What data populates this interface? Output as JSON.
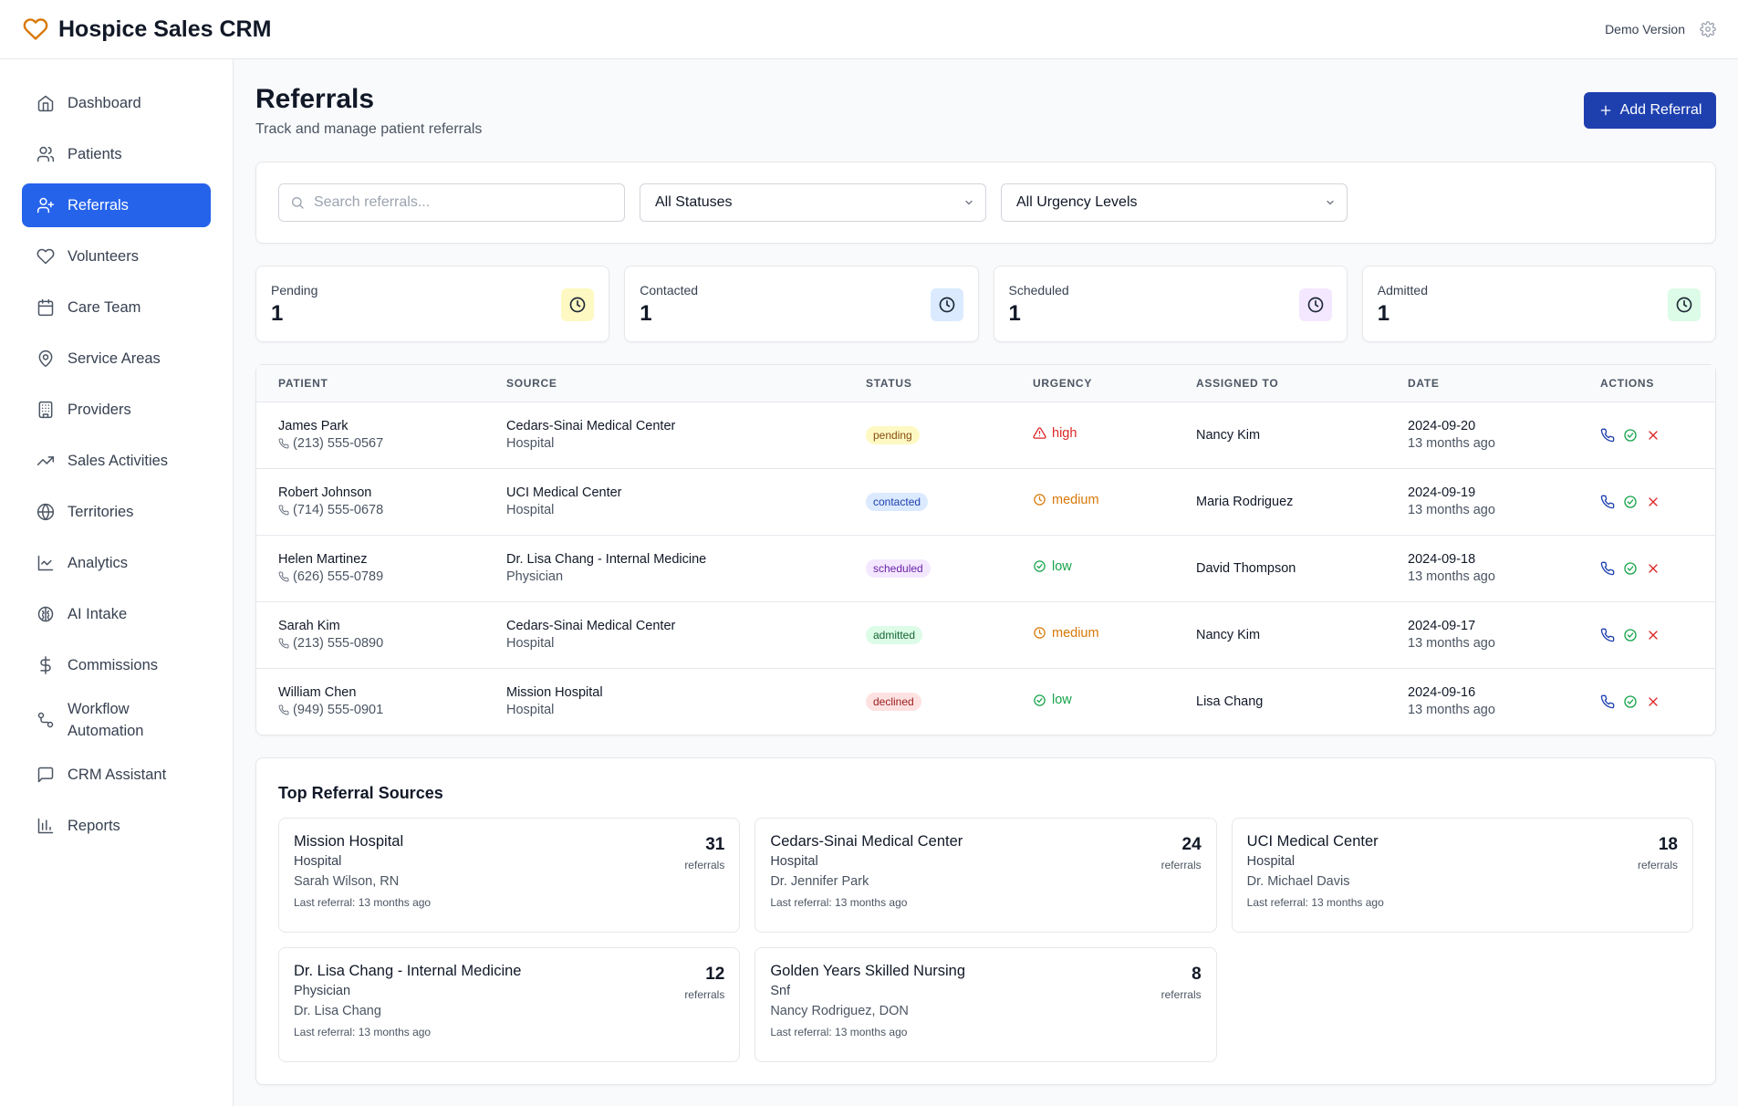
{
  "app": {
    "title": "Hospice Sales CRM",
    "demo_label": "Demo Version"
  },
  "sidebar": {
    "items": [
      {
        "label": "Dashboard",
        "icon": "home-icon"
      },
      {
        "label": "Patients",
        "icon": "users-icon"
      },
      {
        "label": "Referrals",
        "icon": "user-plus-icon",
        "active": true
      },
      {
        "label": "Volunteers",
        "icon": "heart-icon"
      },
      {
        "label": "Care Team",
        "icon": "calendar-icon"
      },
      {
        "label": "Service Areas",
        "icon": "map-pin-icon"
      },
      {
        "label": "Providers",
        "icon": "building-icon"
      },
      {
        "label": "Sales Activities",
        "icon": "trending-up-icon"
      },
      {
        "label": "Territories",
        "icon": "globe-icon"
      },
      {
        "label": "Analytics",
        "icon": "line-chart-icon"
      },
      {
        "label": "AI Intake",
        "icon": "brain-icon"
      },
      {
        "label": "Commissions",
        "icon": "dollar-icon"
      },
      {
        "label": "Workflow Automation",
        "icon": "workflow-icon"
      },
      {
        "label": "CRM Assistant",
        "icon": "message-square-icon"
      },
      {
        "label": "Reports",
        "icon": "bar-chart-icon"
      }
    ]
  },
  "page": {
    "title": "Referrals",
    "subtitle": "Track and manage patient referrals",
    "add_button": "Add Referral"
  },
  "filters": {
    "search_placeholder": "Search referrals...",
    "status_select": "All Statuses",
    "urgency_select": "All Urgency Levels"
  },
  "stats": [
    {
      "label": "Pending",
      "value": "1",
      "color": "#ca8a04",
      "bg": "#fef9c3"
    },
    {
      "label": "Contacted",
      "value": "1",
      "color": "#1e40af",
      "bg": "#dbeafe"
    },
    {
      "label": "Scheduled",
      "value": "1",
      "color": "#7e22ce",
      "bg": "#f3e8ff"
    },
    {
      "label": "Admitted",
      "value": "1",
      "color": "#15803d",
      "bg": "#dcfce7"
    }
  ],
  "table": {
    "headers": [
      "Patient",
      "Source",
      "Status",
      "Urgency",
      "Assigned To",
      "Date",
      "Actions"
    ],
    "rows": [
      {
        "name": "James Park",
        "phone": "(213) 555-0567",
        "source": "Cedars-Sinai Medical Center",
        "source_type": "Hospital",
        "status": "pending",
        "urgency": "high",
        "assigned": "Nancy Kim",
        "date": "2024-09-20",
        "ago": "13 months ago"
      },
      {
        "name": "Robert Johnson",
        "phone": "(714) 555-0678",
        "source": "UCI Medical Center",
        "source_type": "Hospital",
        "status": "contacted",
        "urgency": "medium",
        "assigned": "Maria Rodriguez",
        "date": "2024-09-19",
        "ago": "13 months ago"
      },
      {
        "name": "Helen Martinez",
        "phone": "(626) 555-0789",
        "source": "Dr. Lisa Chang - Internal Medicine",
        "source_type": "Physician",
        "status": "scheduled",
        "urgency": "low",
        "assigned": "David Thompson",
        "date": "2024-09-18",
        "ago": "13 months ago"
      },
      {
        "name": "Sarah Kim",
        "phone": "(213) 555-0890",
        "source": "Cedars-Sinai Medical Center",
        "source_type": "Hospital",
        "status": "admitted",
        "urgency": "medium",
        "assigned": "Nancy Kim",
        "date": "2024-09-17",
        "ago": "13 months ago"
      },
      {
        "name": "William Chen",
        "phone": "(949) 555-0901",
        "source": "Mission Hospital",
        "source_type": "Hospital",
        "status": "declined",
        "urgency": "low",
        "assigned": "Lisa Chang",
        "date": "2024-09-16",
        "ago": "13 months ago"
      }
    ]
  },
  "status_colors": {
    "pending": {
      "bg": "#fef9c3",
      "fg": "#854d0e"
    },
    "contacted": {
      "bg": "#dbeafe",
      "fg": "#1e40af"
    },
    "scheduled": {
      "bg": "#f3e8ff",
      "fg": "#6b21a8"
    },
    "admitted": {
      "bg": "#dcfce7",
      "fg": "#166534"
    },
    "declined": {
      "bg": "#fee2e2",
      "fg": "#991b1b"
    }
  },
  "urgency_colors": {
    "high": "#dc2626",
    "medium": "#d97706",
    "low": "#16a34a"
  },
  "top_sources": {
    "title": "Top Referral Sources",
    "count_label": "referrals",
    "last_prefix": "Last referral: ",
    "items": [
      {
        "name": "Mission Hospital",
        "type": "Hospital",
        "contact": "Sarah Wilson, RN",
        "last": "13 months ago",
        "count": "31"
      },
      {
        "name": "Cedars-Sinai Medical Center",
        "type": "Hospital",
        "contact": "Dr. Jennifer Park",
        "last": "13 months ago",
        "count": "24"
      },
      {
        "name": "UCI Medical Center",
        "type": "Hospital",
        "contact": "Dr. Michael Davis",
        "last": "13 months ago",
        "count": "18"
      },
      {
        "name": "Dr. Lisa Chang - Internal Medicine",
        "type": "Physician",
        "contact": "Dr. Lisa Chang",
        "last": "13 months ago",
        "count": "12"
      },
      {
        "name": "Golden Years Skilled Nursing",
        "type": "Snf",
        "contact": "Nancy Rodriguez, DON",
        "last": "13 months ago",
        "count": "8"
      }
    ]
  },
  "colors": {
    "accent": "#2563eb",
    "brand_heart": "#d97706",
    "add_button": "#1e40af"
  }
}
